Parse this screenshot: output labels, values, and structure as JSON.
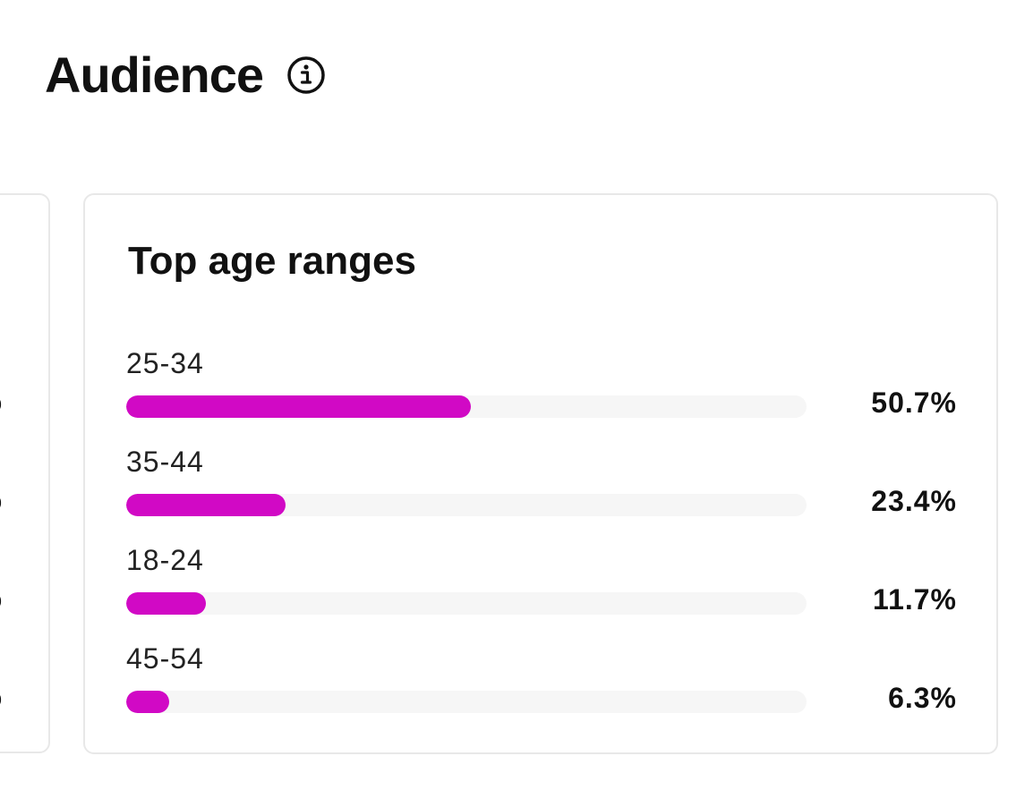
{
  "section": {
    "title": "Audience",
    "info_icon": "info-circle-icon"
  },
  "left_card": {
    "clipped_values": [
      "%",
      "%",
      "%",
      "%"
    ]
  },
  "age_card": {
    "title": "Top age ranges",
    "accent_color": "#d109c5",
    "track_color": "#f6f6f6",
    "ranges": [
      {
        "label": "25-34",
        "value_text": "50.7%",
        "value": 50.7
      },
      {
        "label": "35-44",
        "value_text": "23.4%",
        "value": 23.4
      },
      {
        "label": "18-24",
        "value_text": "11.7%",
        "value": 11.7
      },
      {
        "label": "45-54",
        "value_text": "6.3%",
        "value": 6.3
      }
    ]
  }
}
